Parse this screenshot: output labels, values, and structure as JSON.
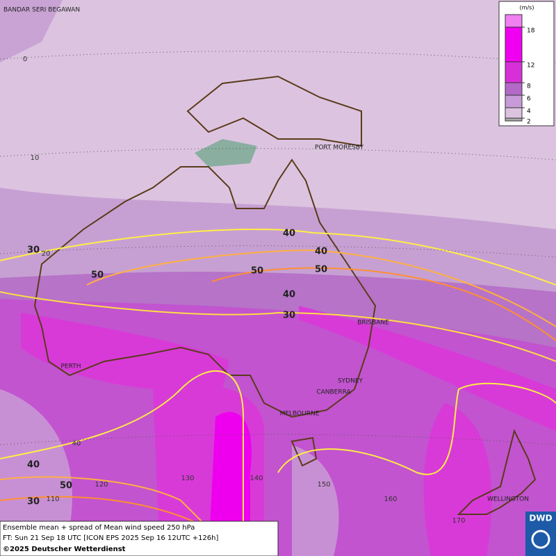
{
  "map": {
    "cities": [
      "BANDAR SERI BEGAWAN",
      "PORT MORESBY",
      "BRISBANE",
      "PERTH",
      "SYDNEY",
      "CANBERRA",
      "MELBOURNE",
      "WELLINGTON"
    ],
    "lat_labels": [
      0,
      10,
      20,
      40
    ],
    "lon_labels": [
      110,
      120,
      130,
      140,
      150,
      160,
      170
    ],
    "contour_labels": [
      30,
      40,
      50,
      40,
      50,
      50,
      40,
      30,
      40,
      50,
      30
    ]
  },
  "legend": {
    "unit": "(m/s)",
    "ticks": [
      18,
      12,
      8,
      6,
      4,
      2
    ]
  },
  "caption": {
    "lines": [
      "Ensemble mean + spread of Mean wind speed 250 hPa",
      "FT: Sun 21 Sep 18 UTC [ICON EPS 2025 Sep 16 12UTC +126h]"
    ],
    "copyright": "©2025 Deutscher Wetterdienst"
  },
  "logo": "DWD"
}
